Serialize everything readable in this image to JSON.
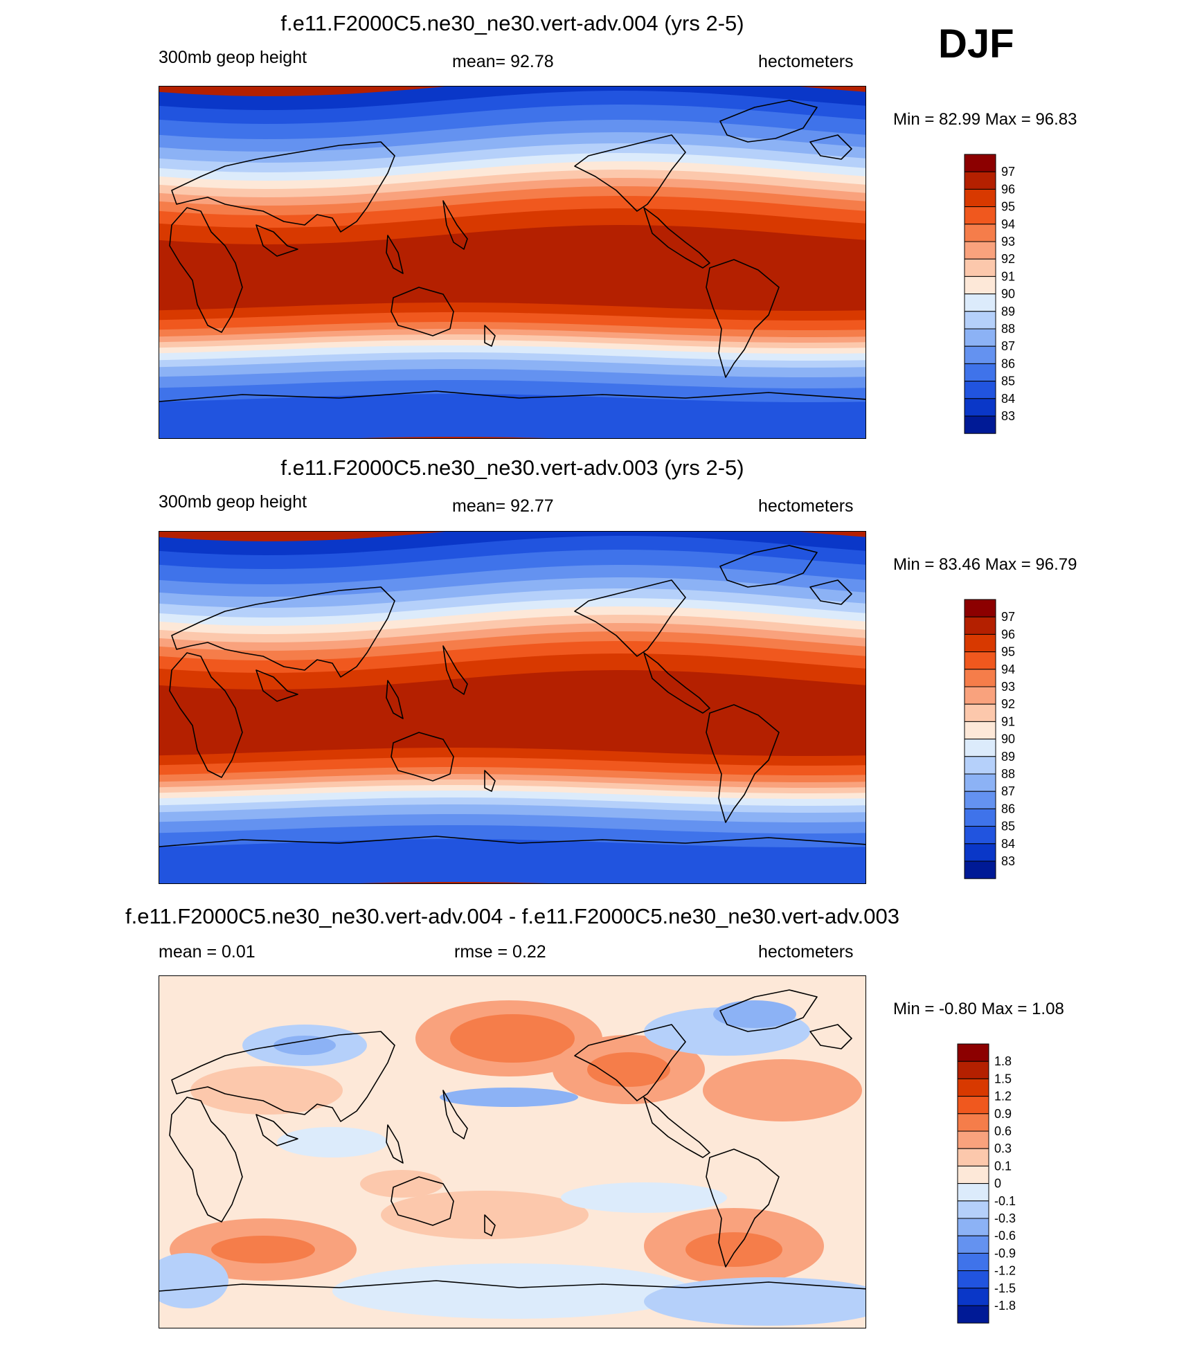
{
  "season": "DJF",
  "chart_data": [
    {
      "type": "heatmap",
      "title": "f.e11.F2000C5.ne30_ne30.vert-adv.004 (yrs 2-5)",
      "variable": "300mb geop height",
      "mean_text": "mean=  92.78",
      "units": "hectometers",
      "minmax_text": "Min =  82.99 Max =  96.83",
      "min": 82.99,
      "max": 96.83,
      "levels": [
        "97",
        "96",
        "95",
        "94",
        "93",
        "92",
        "91",
        "90",
        "89",
        "88",
        "87",
        "86",
        "85",
        "84",
        "83"
      ],
      "colors": [
        "#8c0000",
        "#b42000",
        "#d83900",
        "#f0581e",
        "#f57d4a",
        "#f9a27d",
        "#fcc8ac",
        "#fde8d8",
        "#dcebfb",
        "#b5d0fa",
        "#8cb2f5",
        "#6492f0",
        "#3f73ea",
        "#2154df",
        "#0a37c8",
        "#001a96"
      ]
    },
    {
      "type": "heatmap",
      "title": "f.e11.F2000C5.ne30_ne30.vert-adv.003 (yrs 2-5)",
      "variable": "300mb geop height",
      "mean_text": "mean=  92.77",
      "units": "hectometers",
      "minmax_text": "Min =  83.46 Max =  96.79",
      "min": 83.46,
      "max": 96.79,
      "levels": [
        "97",
        "96",
        "95",
        "94",
        "93",
        "92",
        "91",
        "90",
        "89",
        "88",
        "87",
        "86",
        "85",
        "84",
        "83"
      ],
      "colors": [
        "#8c0000",
        "#b42000",
        "#d83900",
        "#f0581e",
        "#f57d4a",
        "#f9a27d",
        "#fcc8ac",
        "#fde8d8",
        "#dcebfb",
        "#b5d0fa",
        "#8cb2f5",
        "#6492f0",
        "#3f73ea",
        "#2154df",
        "#0a37c8",
        "#001a96"
      ]
    },
    {
      "type": "heatmap",
      "title": "f.e11.F2000C5.ne30_ne30.vert-adv.004 - f.e11.F2000C5.ne30_ne30.vert-adv.003",
      "mean_text": "mean =   0.01",
      "rmse_text": "rmse =   0.22",
      "units": "hectometers",
      "minmax_text": "Min =  -0.80 Max =   1.08",
      "min": -0.8,
      "max": 1.08,
      "levels": [
        "1.8",
        "1.5",
        "1.2",
        "0.9",
        "0.6",
        "0.3",
        "0.1",
        "0",
        "-0.1",
        "-0.3",
        "-0.6",
        "-0.9",
        "-1.2",
        "-1.5",
        "-1.8"
      ],
      "colors": [
        "#8c0000",
        "#b42000",
        "#d83900",
        "#f0581e",
        "#f57d4a",
        "#f9a27d",
        "#fcc8ac",
        "#fde8d8",
        "#dcebfb",
        "#b5d0fa",
        "#8cb2f5",
        "#6492f0",
        "#3f73ea",
        "#2154df",
        "#0a37c8",
        "#001a96"
      ]
    }
  ]
}
